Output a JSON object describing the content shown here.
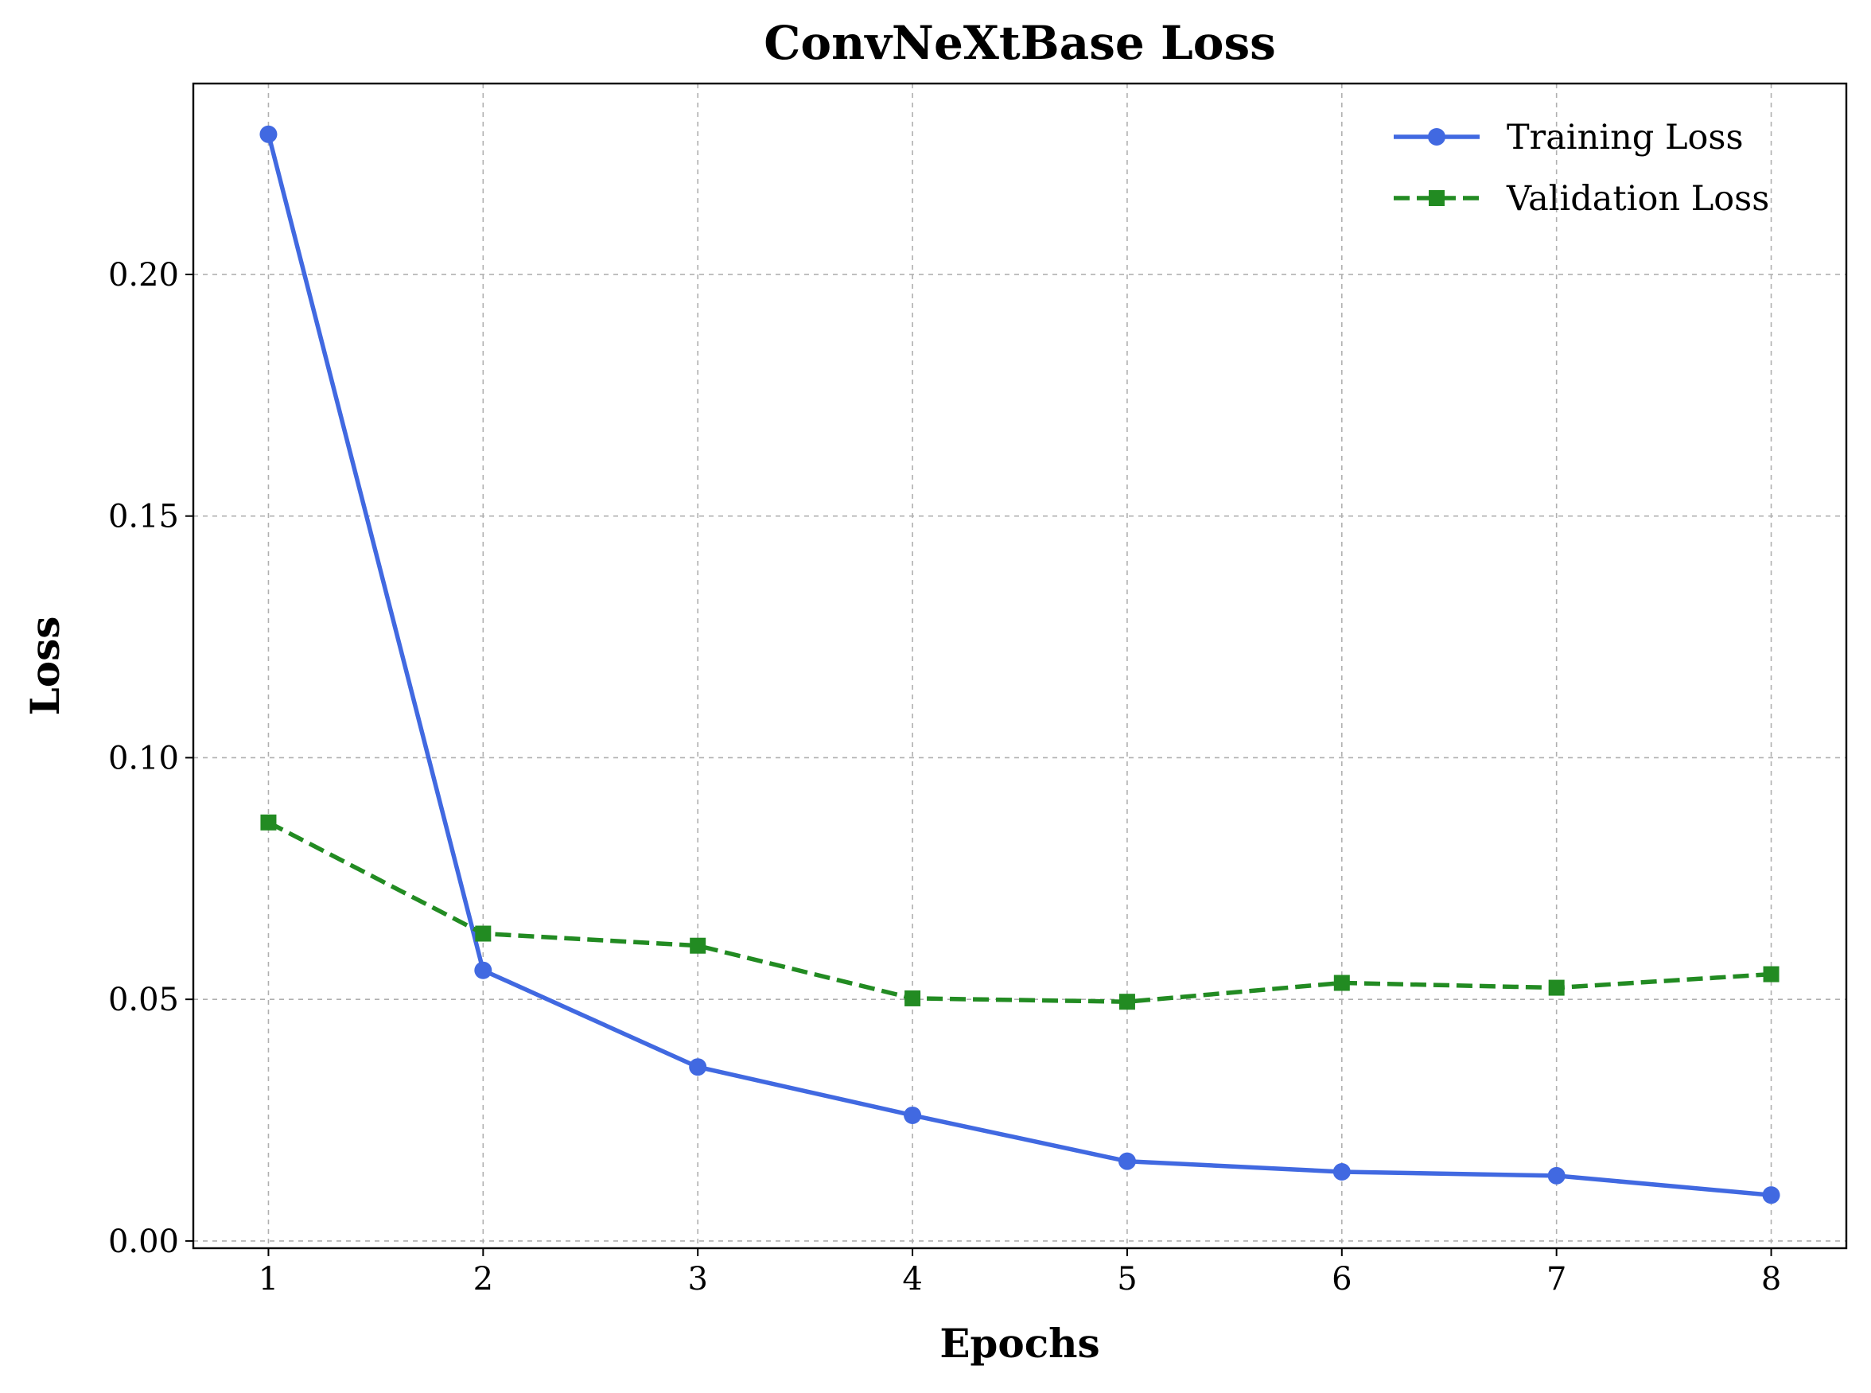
{
  "chart_data": {
    "type": "line",
    "title": "ConvNeXtBase Loss",
    "xlabel": "Epochs",
    "ylabel": "Loss",
    "x": [
      1,
      2,
      3,
      4,
      5,
      6,
      7,
      8
    ],
    "xlim": [
      0.65,
      8.35
    ],
    "ylim": [
      -0.0015,
      0.2395
    ],
    "xticks": [
      "1",
      "2",
      "3",
      "4",
      "5",
      "6",
      "7",
      "8"
    ],
    "yticks": [
      "0.00",
      "0.05",
      "0.10",
      "0.15",
      "0.20"
    ],
    "grid": true,
    "legend_position": "top-right",
    "series": [
      {
        "name": "Training Loss",
        "values": [
          0.229,
          0.056,
          0.036,
          0.026,
          0.0165,
          0.0143,
          0.0135,
          0.0095
        ],
        "color": "#4169e1",
        "line_style": "solid",
        "marker": "circle"
      },
      {
        "name": "Validation Loss",
        "values": [
          0.0866,
          0.0636,
          0.0611,
          0.0502,
          0.0495,
          0.0534,
          0.0524,
          0.0552
        ],
        "color": "#228b22",
        "line_style": "dashed",
        "marker": "square"
      }
    ]
  }
}
